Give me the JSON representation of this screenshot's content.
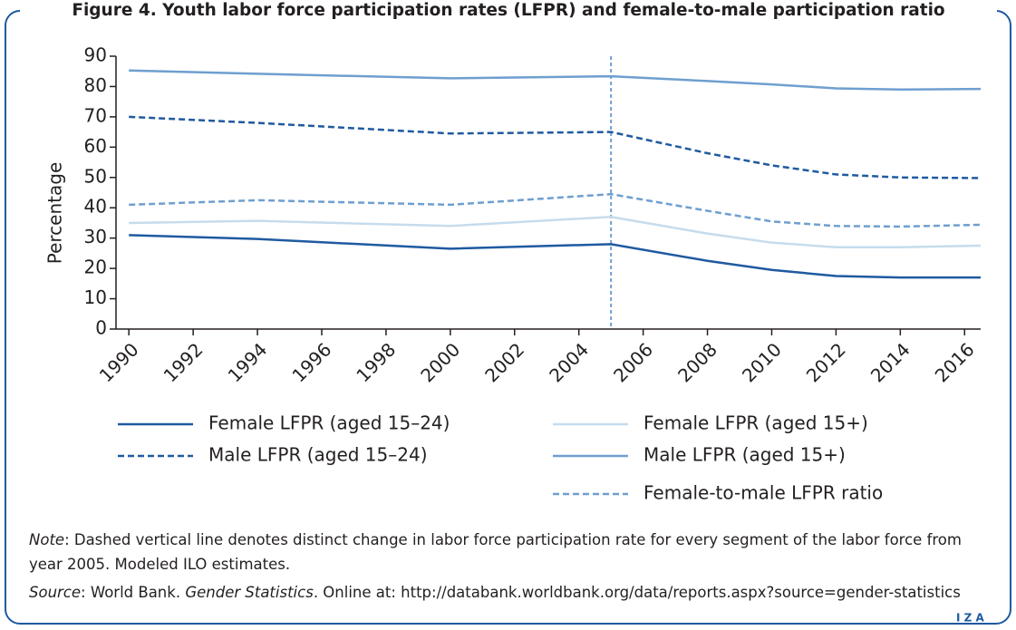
{
  "chart_data": {
    "type": "line",
    "title": "Figure 4. Youth labor force participation rates (LFPR) and female-to-male participation ratio",
    "ylabel": "Percentage",
    "x": [
      1990,
      1994,
      2000,
      2005,
      2008,
      2010,
      2012,
      2014,
      2016.5
    ],
    "series": [
      {
        "name": "Female LFPR (aged 15–24)",
        "color": "#1f5aa0",
        "dashed": false,
        "values": [
          31,
          29.7,
          26.5,
          28,
          22.5,
          19.5,
          17.5,
          17,
          17
        ]
      },
      {
        "name": "Female LFPR (aged 15+)",
        "color": "#c6dced",
        "dashed": false,
        "values": [
          35,
          35.7,
          34,
          37,
          31.5,
          28.5,
          27,
          27,
          27.5
        ]
      },
      {
        "name": "Male LFPR (aged 15–24)",
        "color": "#1f5aa0",
        "dashed": true,
        "values": [
          70,
          68,
          64.5,
          65,
          58,
          54,
          51,
          50,
          49.8
        ]
      },
      {
        "name": "Male LFPR (aged 15+)",
        "color": "#6e9fd0",
        "dashed": false,
        "values": [
          85.3,
          84.2,
          82.7,
          83.4,
          81.8,
          80.7,
          79.4,
          79,
          79.2
        ]
      },
      {
        "name": "Female-to-male LFPR ratio",
        "color": "#6e9fd0",
        "dashed": true,
        "values": [
          41,
          42.5,
          41,
          44.5,
          39,
          35.5,
          34,
          33.8,
          34.4
        ]
      }
    ],
    "reference_line": 2005,
    "xlim": [
      1989.6,
      2016.5
    ],
    "xticks": [
      1990,
      1992,
      1994,
      1996,
      1998,
      2000,
      2002,
      2004,
      2006,
      2008,
      2010,
      2012,
      2014,
      2016
    ],
    "ylim": [
      0,
      90
    ],
    "yticks": [
      0,
      10,
      20,
      30,
      40,
      50,
      60,
      70,
      80,
      90
    ],
    "note_label": "Note",
    "note_text": ": Dashed vertical line denotes distinct change in labor force participation rate for every segment of the labor force from year 2005. Modeled ILO estimates.",
    "source_label": "Source",
    "source_text1": ": World Bank. ",
    "source_title": "Gender Statistics",
    "source_text2": ". Online at: http://databank.worldbank.org/data/reports.aspx?source=gender-statistics",
    "logo": "I Z A"
  }
}
